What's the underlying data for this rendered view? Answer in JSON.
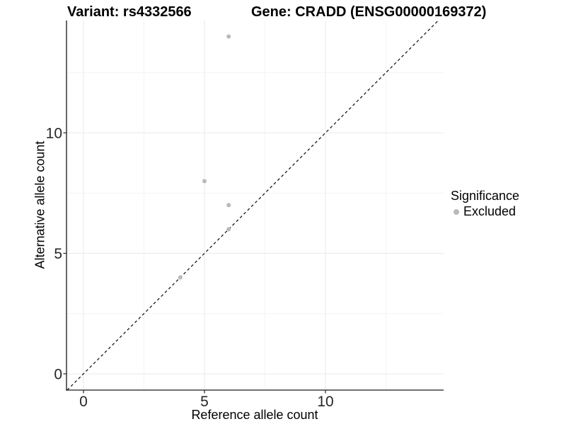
{
  "header": {
    "variant_title": "Variant: rs4332566",
    "gene_title": "Gene: CRADD (ENSG00000169372)"
  },
  "axes": {
    "x_label": "Reference allele count",
    "y_label": "Alternative allele count"
  },
  "legend": {
    "title": "Significance",
    "items": [
      {
        "label": "Excluded",
        "color": "#b9b9b9"
      }
    ]
  },
  "chart_data": {
    "type": "scatter",
    "title": "Variant: rs4332566 | Gene: CRADD (ENSG00000169372)",
    "xlabel": "Reference allele count",
    "ylabel": "Alternative allele count",
    "xlim": [
      -0.7,
      14.9
    ],
    "ylim": [
      -0.7,
      14.7
    ],
    "x_ticks": [
      0,
      5,
      10
    ],
    "y_ticks": [
      0,
      5,
      10
    ],
    "x_tick_labels": [
      "0",
      "5",
      "10"
    ],
    "y_tick_labels": [
      "0",
      "5",
      "10"
    ],
    "minor_gridlines_x": [
      2.5,
      7.5,
      12.5
    ],
    "minor_gridlines_y": [
      2.5,
      7.5,
      12.5
    ],
    "grid": true,
    "legend_position": "right",
    "series": [
      {
        "name": "Excluded",
        "color": "#b9b9b9",
        "points": [
          [
            6,
            14
          ],
          [
            5,
            8
          ],
          [
            6,
            7
          ],
          [
            6,
            6
          ],
          [
            4,
            4
          ]
        ]
      }
    ],
    "reference_line": {
      "type": "identity",
      "equation": "y = x",
      "style": "dashed"
    }
  },
  "colors": {
    "background": "#ffffff",
    "point": "#b9b9b9",
    "grid_major": "#e9e9e9",
    "grid_minor": "#f4f4f4",
    "axis_line": "#404040",
    "tick_mark": "#333333",
    "tick_text": "#262626",
    "dashed_line": "#111111",
    "text": "#000000"
  }
}
